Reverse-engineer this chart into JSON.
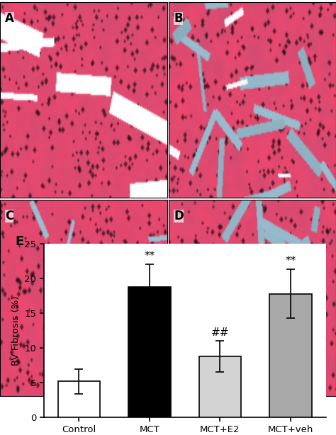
{
  "bar_categories": [
    "Control",
    "MCT",
    "MCT+E2",
    "MCT+veh"
  ],
  "bar_values": [
    5.2,
    18.8,
    8.8,
    17.8
  ],
  "bar_errors": [
    1.8,
    3.2,
    2.2,
    3.5
  ],
  "bar_colors": [
    "#ffffff",
    "#000000",
    "#d3d3d3",
    "#a8a8a8"
  ],
  "bar_edgecolors": [
    "#000000",
    "#000000",
    "#000000",
    "#000000"
  ],
  "ylabel": "RV Fibrosis (%)",
  "ylim": [
    0,
    25
  ],
  "yticks": [
    0,
    5,
    10,
    15,
    20,
    25
  ],
  "panel_e_label": "E",
  "significance_mct": "**",
  "significance_mctveh": "**",
  "significance_mcte2": "##",
  "figure_width": 4.74,
  "figure_height": 6.14,
  "bar_width": 0.6,
  "panel_labels": [
    "A",
    "B",
    "C",
    "D"
  ]
}
